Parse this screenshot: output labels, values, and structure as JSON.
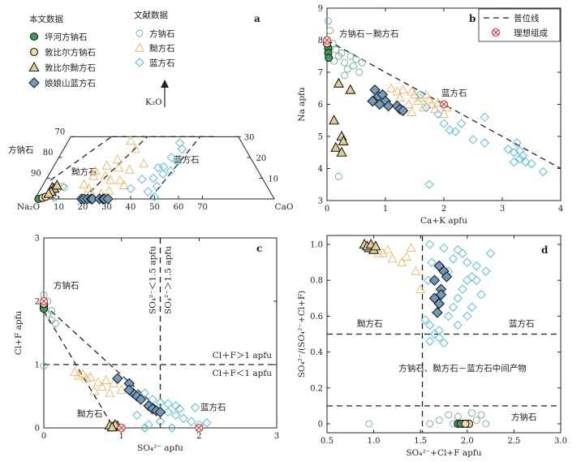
{
  "colors": {
    "pingHeFill": "#3f9a62",
    "dunSodFill": "#f0d9a2",
    "dunNosFill": "#e3cf93",
    "lazuliteFill": "#6f9bc0",
    "litSod": "#6fb18c",
    "litNos": "#f0b463",
    "litLaz": "#44b7dc",
    "ideal": "#e03030"
  },
  "legend_a": {
    "group_this": "本文数据",
    "group_lit": "文献数据",
    "items": [
      "坪河方钠石",
      "敦比尔方钠石",
      "敦比尔黝方石",
      "娘娘山蓝方石"
    ],
    "lit_items": [
      "方钠石",
      "黝方石",
      "蓝方石"
    ]
  },
  "chart_data": [
    {
      "panel": "a",
      "type": "ternary",
      "vertices": [
        "Na₂O",
        "CaO",
        "K₂O"
      ],
      "k2o_arrow_label": "K₂O",
      "left_edge_ticks": [
        "70",
        "80",
        "90"
      ],
      "right_edge_ticks": [
        "30",
        "20",
        "10"
      ],
      "bottom_ticks": [
        "10",
        "20",
        "30",
        "40",
        "50",
        "60",
        "70"
      ],
      "labels": [
        "方钠石",
        "黝方石",
        "蓝方石"
      ],
      "series": {
        "pingHe": [
          [
            1.5,
            0.0
          ]
        ],
        "dunSod": [
          [
            3.0,
            0.5
          ],
          [
            4.0,
            1.0
          ]
        ],
        "dunNos": [
          [
            4.5,
            5.5
          ],
          [
            5.5,
            5.0
          ],
          [
            5.0,
            3.5
          ],
          [
            6.0,
            6.5
          ],
          [
            4.5,
            2.5
          ]
        ],
        "lazurite": [
          [
            19.5,
            0.0
          ],
          [
            20.5,
            0.0
          ],
          [
            22.0,
            0.0
          ],
          [
            23.5,
            0.0
          ],
          [
            24.0,
            0.0
          ],
          [
            27.0,
            0.0
          ],
          [
            28.5,
            0.0
          ],
          [
            29.0,
            0.0
          ],
          [
            30.5,
            0.0
          ]
        ],
        "litSod": [
          [
            7.0,
            5.0
          ],
          [
            8.5,
            6.0
          ],
          [
            9.5,
            5.5
          ],
          [
            6.5,
            2.0
          ],
          [
            6.0,
            4.0
          ],
          [
            8.0,
            0.5
          ]
        ],
        "litNos": [
          [
            26.0,
            28.0
          ],
          [
            30.0,
            24.0
          ],
          [
            25.0,
            19.0
          ],
          [
            22.0,
            16.0
          ],
          [
            18.5,
            13.5
          ],
          [
            19.0,
            11.0
          ],
          [
            24.0,
            11.0
          ],
          [
            27.0,
            9.0
          ],
          [
            31.0,
            9.0
          ],
          [
            34.0,
            6.5
          ],
          [
            22.0,
            3.0
          ],
          [
            26.5,
            2.5
          ],
          [
            17.0,
            7.0
          ],
          [
            20.0,
            5.0
          ],
          [
            29.0,
            4.0
          ],
          [
            32.5,
            14.0
          ],
          [
            27.5,
            15.0
          ],
          [
            37.0,
            17.0
          ]
        ],
        "litLaz": [
          [
            47.0,
            27.0
          ],
          [
            49.5,
            24.0
          ],
          [
            47.0,
            20.0
          ],
          [
            50.5,
            18.0
          ],
          [
            46.0,
            15.5
          ],
          [
            50.0,
            13.5
          ],
          [
            47.5,
            12.0
          ],
          [
            44.5,
            10.0
          ],
          [
            40.0,
            9.5
          ],
          [
            37.5,
            5.0
          ],
          [
            45.5,
            3.5
          ],
          [
            49.5,
            1.0
          ],
          [
            44.0,
            15.0
          ],
          [
            48.0,
            6.0
          ]
        ]
      }
    },
    {
      "panel": "b",
      "type": "scatter",
      "xlabel": "Ca+K apfu",
      "ylabel": "Na apfu",
      "xlim": [
        0,
        4
      ],
      "ylim": [
        3,
        9
      ],
      "xticks": [
        "0",
        "1",
        "2",
        "3",
        "4"
      ],
      "yticks": [
        "3",
        "4",
        "5",
        "6",
        "7",
        "8",
        "9"
      ],
      "series_label": "方钠石－黝方石",
      "annotation": "蓝方石",
      "legend": [
        "普位线",
        "理想组成"
      ],
      "line": [
        [
          0,
          8
        ],
        [
          4,
          4
        ]
      ],
      "series": {
        "pingHe": [
          [
            0.02,
            7.75
          ],
          [
            0.02,
            7.6
          ],
          [
            0.03,
            7.45
          ]
        ],
        "dunSod": [
          [
            0.0,
            7.9
          ]
        ],
        "dunNos": [
          [
            0.12,
            5.5
          ],
          [
            0.2,
            6.65
          ],
          [
            0.25,
            5.0
          ],
          [
            0.28,
            4.85
          ],
          [
            0.15,
            4.65
          ],
          [
            0.25,
            4.5
          ],
          [
            0.4,
            6.45
          ]
        ],
        "lazurite": [
          [
            0.82,
            6.45
          ],
          [
            0.88,
            6.25
          ],
          [
            0.78,
            6.1
          ],
          [
            0.95,
            6.3
          ],
          [
            1.0,
            6.1
          ],
          [
            1.05,
            5.95
          ],
          [
            1.2,
            5.95
          ],
          [
            1.25,
            5.85
          ],
          [
            1.3,
            5.8
          ],
          [
            0.9,
            6.0
          ]
        ],
        "litSod": [
          [
            0.02,
            8.6
          ],
          [
            0.05,
            8.3
          ],
          [
            0.1,
            7.9
          ],
          [
            0.15,
            7.7
          ],
          [
            0.2,
            7.5
          ],
          [
            0.3,
            7.3
          ],
          [
            0.4,
            7.5
          ],
          [
            0.35,
            7.1
          ],
          [
            0.5,
            7.4
          ],
          [
            0.45,
            7.2
          ],
          [
            0.3,
            6.9
          ],
          [
            0.25,
            7.6
          ],
          [
            0.12,
            7.35
          ],
          [
            0.6,
            7.3
          ],
          [
            0.55,
            7.0
          ],
          [
            0.2,
            3.75
          ]
        ],
        "litNos": [
          [
            1.1,
            6.5
          ],
          [
            1.2,
            6.4
          ],
          [
            1.3,
            6.45
          ],
          [
            1.45,
            6.4
          ],
          [
            1.5,
            6.3
          ],
          [
            1.6,
            6.2
          ],
          [
            1.7,
            6.3
          ],
          [
            1.8,
            6.0
          ],
          [
            1.9,
            6.05
          ],
          [
            2.0,
            5.7
          ],
          [
            1.4,
            6.0
          ],
          [
            1.55,
            6.1
          ],
          [
            1.75,
            6.15
          ],
          [
            1.85,
            5.85
          ],
          [
            1.25,
            6.2
          ],
          [
            2.05,
            5.9
          ],
          [
            1.65,
            5.9
          ],
          [
            1.45,
            5.75
          ]
        ],
        "litLaz": [
          [
            1.6,
            6.3
          ],
          [
            1.7,
            5.9
          ],
          [
            1.9,
            5.7
          ],
          [
            2.0,
            5.4
          ],
          [
            2.1,
            5.2
          ],
          [
            2.2,
            5.15
          ],
          [
            2.3,
            5.4
          ],
          [
            2.5,
            4.9
          ],
          [
            2.7,
            5.6
          ],
          [
            2.7,
            4.8
          ],
          [
            3.1,
            4.6
          ],
          [
            3.2,
            4.5
          ],
          [
            3.25,
            4.8
          ],
          [
            3.3,
            4.3
          ],
          [
            3.35,
            4.4
          ],
          [
            3.4,
            4.2
          ],
          [
            3.5,
            4.15
          ],
          [
            3.3,
            4.55
          ],
          [
            3.2,
            4.2
          ],
          [
            3.7,
            3.9
          ],
          [
            1.75,
            3.5
          ]
        ],
        "ideal": [
          [
            0.0,
            8.0
          ],
          [
            2.0,
            6.0
          ]
        ]
      }
    },
    {
      "panel": "c",
      "type": "scatter",
      "xlabel": "SO₄²⁻ apfu",
      "ylabel": "Cl+F apfu",
      "xlim": [
        0,
        3
      ],
      "ylim": [
        0,
        3
      ],
      "xticks": [
        "0",
        "1",
        "2",
        "3"
      ],
      "yticks": [
        "0",
        "1",
        "2",
        "3"
      ],
      "annot_upper": "Cl＋F＞1 apfu",
      "annot_lower": "Cl＋F＜1 apfu",
      "annot_vertical_left": "SO₄²⁻＜1.5 apfu",
      "annot_vertical_right": "SO₄²⁻＞1.5 apfu",
      "labels": [
        "方钠石",
        "黝方石",
        "蓝方石"
      ],
      "series": {
        "pingHe": [
          [
            0.0,
            1.92
          ],
          [
            0.0,
            1.88
          ]
        ],
        "dunSod": [
          [
            0.0,
            1.96
          ]
        ],
        "dunNos": [
          [
            0.85,
            0.04
          ],
          [
            0.9,
            0.02
          ],
          [
            0.95,
            0.03
          ],
          [
            0.92,
            0.05
          ],
          [
            0.88,
            0.01
          ]
        ],
        "lazurite": [
          [
            0.95,
            0.78
          ],
          [
            1.1,
            0.7
          ],
          [
            1.15,
            0.55
          ],
          [
            1.2,
            0.5
          ],
          [
            1.25,
            0.45
          ],
          [
            1.35,
            0.35
          ],
          [
            1.4,
            0.3
          ],
          [
            1.45,
            0.27
          ],
          [
            1.5,
            0.25
          ],
          [
            1.1,
            0.6
          ]
        ],
        "litSod": [
          [
            0.0,
            2.1
          ],
          [
            0.05,
            2.0
          ],
          [
            0.1,
            1.85
          ],
          [
            0.1,
            1.7
          ],
          [
            0.15,
            1.65
          ],
          [
            0.05,
            1.8
          ],
          [
            0.0,
            0.98
          ]
        ],
        "litNos": [
          [
            0.4,
            0.88
          ],
          [
            0.5,
            0.85
          ],
          [
            0.6,
            0.8
          ],
          [
            0.7,
            0.72
          ],
          [
            0.75,
            0.65
          ],
          [
            0.8,
            0.75
          ],
          [
            0.9,
            0.7
          ],
          [
            0.65,
            0.58
          ],
          [
            0.55,
            0.78
          ],
          [
            0.85,
            0.55
          ],
          [
            1.0,
            0.6
          ],
          [
            0.45,
            0.82
          ]
        ],
        "litLaz": [
          [
            1.3,
            0.55
          ],
          [
            1.4,
            0.45
          ],
          [
            1.5,
            0.4
          ],
          [
            1.6,
            0.38
          ],
          [
            1.7,
            0.35
          ],
          [
            1.75,
            0.3
          ],
          [
            1.6,
            0.25
          ],
          [
            1.7,
            0.2
          ],
          [
            1.8,
            0.15
          ],
          [
            1.9,
            0.1
          ],
          [
            2.0,
            0.05
          ],
          [
            2.1,
            0.08
          ],
          [
            1.95,
            0.32
          ],
          [
            1.5,
            0.1
          ],
          [
            1.35,
            0.05
          ],
          [
            1.3,
            0.0
          ],
          [
            1.65,
            0.0
          ],
          [
            1.2,
            0.2
          ]
        ],
        "ideal": [
          [
            0.0,
            2.0
          ],
          [
            1.0,
            0.0
          ],
          [
            2.0,
            0.0
          ]
        ]
      }
    },
    {
      "panel": "d",
      "type": "scatter",
      "xlabel": "SO₄²⁻+Cl+F apfu",
      "ylabel": "SO₄²⁻/(SO₄²⁻+Cl+F)",
      "xlim": [
        0.5,
        3.0
      ],
      "ylim": [
        -0.05,
        1.05
      ],
      "xticks": [
        "0.5",
        "1.0",
        "1.5",
        "2.0",
        "2.5",
        "3.0"
      ],
      "yticks": [
        "0",
        "0.2",
        "0.4",
        "0.6",
        "0.8",
        "1.0"
      ],
      "labels": [
        "黝方石",
        "蓝方石",
        "方钠石、黝方石－蓝方石中间产物",
        "方钠石"
      ],
      "series": {
        "pingHe": [
          [
            1.9,
            0.0
          ],
          [
            1.95,
            0.0
          ],
          [
            2.0,
            0.0
          ],
          [
            1.93,
            0.0
          ]
        ],
        "dunSod": [
          [
            2.02,
            0.0
          ],
          [
            1.98,
            0.0
          ]
        ],
        "dunNos": [
          [
            0.9,
            1.0
          ],
          [
            0.95,
            0.98
          ],
          [
            1.0,
            0.97
          ],
          [
            0.93,
            0.99
          ],
          [
            0.97,
            1.0
          ],
          [
            1.02,
            0.99
          ]
        ],
        "lazurite": [
          [
            1.65,
            0.7
          ],
          [
            1.7,
            0.67
          ],
          [
            1.72,
            0.75
          ],
          [
            1.68,
            0.62
          ],
          [
            1.75,
            0.85
          ],
          [
            1.7,
            0.88
          ],
          [
            1.78,
            0.82
          ],
          [
            1.65,
            0.8
          ],
          [
            1.72,
            0.72
          ]
        ],
        "litSod": [
          [
            0.95,
            0.0
          ],
          [
            1.7,
            0.02
          ],
          [
            1.8,
            0.05
          ],
          [
            1.9,
            0.04
          ],
          [
            2.1,
            0.02
          ],
          [
            2.2,
            0.0
          ],
          [
            2.15,
            0.05
          ],
          [
            1.85,
            0.0
          ],
          [
            1.6,
            0.0
          ],
          [
            2.05,
            0.06
          ]
        ],
        "litNos": [
          [
            1.1,
            0.95
          ],
          [
            1.2,
            0.92
          ],
          [
            1.3,
            0.9
          ],
          [
            1.35,
            0.93
          ],
          [
            1.4,
            0.98
          ],
          [
            1.45,
            0.85
          ],
          [
            1.5,
            0.75
          ],
          [
            1.05,
            0.95
          ],
          [
            1.15,
            0.97
          ]
        ],
        "litLaz": [
          [
            1.55,
            0.58
          ],
          [
            1.6,
            0.55
          ],
          [
            1.65,
            0.5
          ],
          [
            1.7,
            0.48
          ],
          [
            1.75,
            0.45
          ],
          [
            1.8,
            0.6
          ],
          [
            1.85,
            0.65
          ],
          [
            1.9,
            0.7
          ],
          [
            1.95,
            0.75
          ],
          [
            2.0,
            0.8
          ],
          [
            2.05,
            0.82
          ],
          [
            1.85,
            0.92
          ],
          [
            1.9,
            0.97
          ],
          [
            1.95,
            0.95
          ],
          [
            2.0,
            0.9
          ],
          [
            2.1,
            0.88
          ],
          [
            2.2,
            0.85
          ],
          [
            2.05,
            0.65
          ],
          [
            2.15,
            0.72
          ],
          [
            1.6,
            1.0
          ],
          [
            1.8,
            0.85
          ],
          [
            1.9,
            0.55
          ],
          [
            1.7,
            0.52
          ],
          [
            1.6,
            0.46
          ],
          [
            2.25,
            0.95
          ],
          [
            1.58,
            0.8
          ],
          [
            1.62,
            0.9
          ],
          [
            2.0,
            0.6
          ],
          [
            1.75,
            0.98
          ],
          [
            2.1,
            0.8
          ]
        ]
      }
    }
  ],
  "panel_letters": [
    "a",
    "b",
    "c",
    "d"
  ]
}
